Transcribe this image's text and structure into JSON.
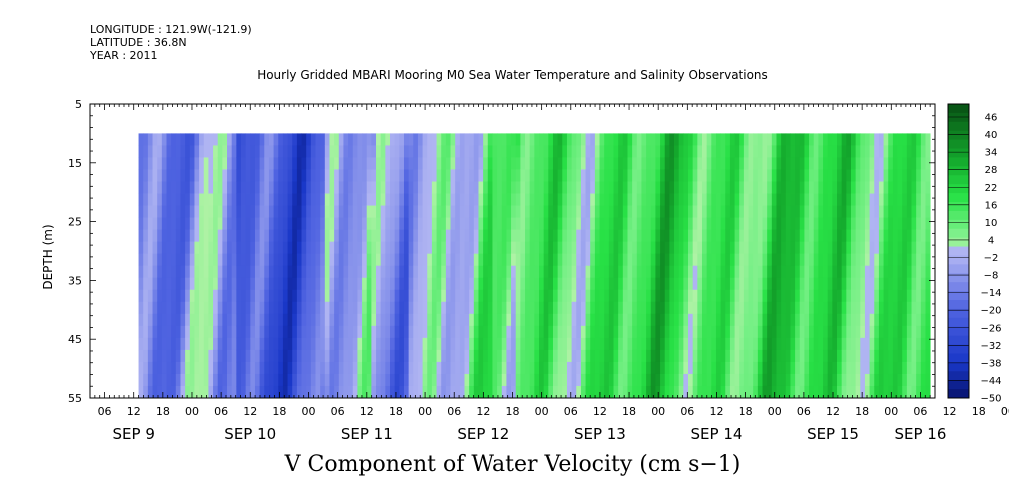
{
  "meta": {
    "longitude": "LONGITUDE : 121.9W(-121.9)",
    "latitude": "LATITUDE : 36.8N",
    "year": "YEAR : 2011"
  },
  "chart_data": {
    "type": "heatmap",
    "title": "Hourly Gridded MBARI Mooring M0 Sea Water Temperature and Salinity Observations",
    "xlabel": "V Component of Water Velocity (cm s−1)",
    "ylabel": "DEPTH (m)",
    "ylim": [
      55,
      5
    ],
    "yticks": [
      5,
      15,
      25,
      35,
      45,
      55
    ],
    "hour_ticks": [
      "06",
      "12",
      "18",
      "00",
      "06",
      "12",
      "18",
      "00",
      "06",
      "12",
      "18",
      "00",
      "06",
      "12",
      "18",
      "00",
      "06",
      "12",
      "18",
      "00",
      "06",
      "12",
      "18",
      "00",
      "06",
      "12",
      "18",
      "00",
      "06",
      "12",
      "18",
      "00",
      "06"
    ],
    "day_labels": [
      "SEP  9",
      "SEP 10",
      "SEP 11",
      "SEP 12",
      "SEP 13",
      "SEP 14",
      "SEP 15",
      "SEP 16"
    ],
    "x_range": [
      "SEP 9 03:00",
      "SEP 16 09:00"
    ],
    "data_x_range": [
      "SEP 9 13:00",
      "SEP 16 08:00"
    ],
    "data_depth_range": [
      10,
      55
    ],
    "colorbar_labels": [
      "46",
      "40",
      "34",
      "28",
      "22",
      "16",
      "10",
      "4",
      "−2",
      "−8",
      "−14",
      "−20",
      "−26",
      "−32",
      "−38",
      "−44",
      "−50"
    ],
    "colorbar_range": [
      -50,
      49
    ],
    "colors": {
      "positive_strong": "#0a5e14",
      "positive_mid": "#22e04a",
      "positive_light": "#8ff29c",
      "negative_light": "#aab0f2",
      "negative_mid": "#5a64e0",
      "negative_strong": "#0b1f7a"
    },
    "pattern": "alternating bands of negative (blue/purple) and positive (green) values; mostly negative SEP 9–11, mostly positive SEP 12–16"
  }
}
